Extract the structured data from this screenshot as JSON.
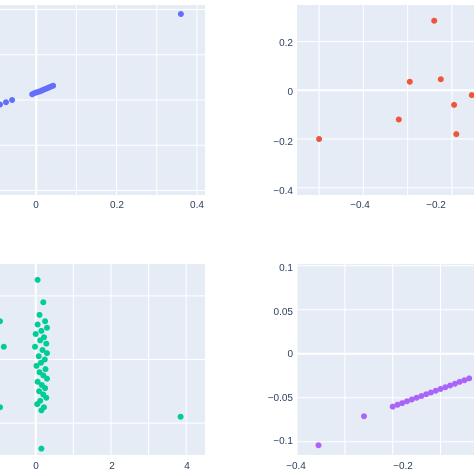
{
  "colors": {
    "plot_bg": "#E5ECF6",
    "grid": "#ffffff",
    "tick_text": "#2a3f5f",
    "series": [
      "#636EFA",
      "#EF553B",
      "#00CC96",
      "#AB63FA"
    ]
  },
  "chart_data": [
    {
      "type": "scatter",
      "grid": true,
      "xticks": [
        "0",
        "0.2",
        "0.4"
      ],
      "yticks": [],
      "xlim": [
        -0.09,
        0.42
      ],
      "ylim": [
        -0.42,
        0.42
      ],
      "points": [
        {
          "x": -0.09,
          "y": -0.02
        },
        {
          "x": -0.075,
          "y": -0.01
        },
        {
          "x": -0.06,
          "y": 0.0
        },
        {
          "x": -0.01,
          "y": 0.025
        },
        {
          "x": -0.005,
          "y": 0.03
        },
        {
          "x": 0.0,
          "y": 0.033
        },
        {
          "x": 0.005,
          "y": 0.036
        },
        {
          "x": 0.01,
          "y": 0.039
        },
        {
          "x": 0.014,
          "y": 0.042
        },
        {
          "x": 0.018,
          "y": 0.045
        },
        {
          "x": 0.022,
          "y": 0.048
        },
        {
          "x": 0.026,
          "y": 0.051
        },
        {
          "x": 0.03,
          "y": 0.054
        },
        {
          "x": 0.034,
          "y": 0.057
        },
        {
          "x": 0.038,
          "y": 0.06
        },
        {
          "x": 0.042,
          "y": 0.063
        },
        {
          "x": 0.36,
          "y": 0.38
        }
      ]
    },
    {
      "type": "scatter",
      "grid": true,
      "xticks": [
        "−0.4",
        "−0.2"
      ],
      "yticks": [
        "0.2",
        "0",
        "−0.2",
        "−0.4"
      ],
      "xlim": [
        -0.55,
        -0.15
      ],
      "ylim": [
        -0.43,
        0.35
      ],
      "points": [
        {
          "x": -0.5,
          "y": -0.2
        },
        {
          "x": -0.32,
          "y": -0.12
        },
        {
          "x": -0.295,
          "y": 0.035
        },
        {
          "x": -0.24,
          "y": 0.285
        },
        {
          "x": -0.225,
          "y": 0.045
        },
        {
          "x": -0.195,
          "y": -0.06
        },
        {
          "x": -0.19,
          "y": -0.18
        },
        {
          "x": -0.155,
          "y": -0.02
        }
      ]
    },
    {
      "type": "scatter",
      "grid": true,
      "xticks": [
        "0",
        "2",
        "4"
      ],
      "yticks": [],
      "xlim": [
        -0.95,
        4.5
      ],
      "ylim": [
        -1.5,
        1.5
      ],
      "points": [
        {
          "x": -0.95,
          "y": 0.6
        },
        {
          "x": -0.85,
          "y": 0.2
        },
        {
          "x": -0.95,
          "y": -0.75
        },
        {
          "x": 0.05,
          "y": 1.25
        },
        {
          "x": 0.2,
          "y": 0.9
        },
        {
          "x": 0.1,
          "y": 0.7
        },
        {
          "x": 0.25,
          "y": 0.6
        },
        {
          "x": 0.05,
          "y": 0.55
        },
        {
          "x": 0.3,
          "y": 0.5
        },
        {
          "x": 0.15,
          "y": 0.45
        },
        {
          "x": 0.0,
          "y": 0.4
        },
        {
          "x": 0.22,
          "y": 0.35
        },
        {
          "x": 0.12,
          "y": 0.3
        },
        {
          "x": 0.28,
          "y": 0.25
        },
        {
          "x": -0.02,
          "y": 0.2
        },
        {
          "x": 0.18,
          "y": 0.15
        },
        {
          "x": 0.3,
          "y": 0.1
        },
        {
          "x": 0.08,
          "y": 0.05
        },
        {
          "x": 0.24,
          "y": 0.0
        },
        {
          "x": 0.14,
          "y": -0.05
        },
        {
          "x": 0.02,
          "y": -0.1
        },
        {
          "x": 0.26,
          "y": -0.15
        },
        {
          "x": 0.1,
          "y": -0.2
        },
        {
          "x": 0.2,
          "y": -0.25
        },
        {
          "x": 0.3,
          "y": -0.3
        },
        {
          "x": 0.05,
          "y": -0.35
        },
        {
          "x": 0.16,
          "y": -0.4
        },
        {
          "x": 0.25,
          "y": -0.45
        },
        {
          "x": 0.09,
          "y": -0.5
        },
        {
          "x": 0.2,
          "y": -0.55
        },
        {
          "x": 0.28,
          "y": -0.6
        },
        {
          "x": 0.12,
          "y": -0.65
        },
        {
          "x": 0.04,
          "y": -0.7
        },
        {
          "x": 0.22,
          "y": -0.75
        },
        {
          "x": 0.15,
          "y": -0.8
        },
        {
          "x": 3.85,
          "y": -0.9
        },
        {
          "x": 0.15,
          "y": -1.4
        }
      ]
    },
    {
      "type": "scatter",
      "grid": true,
      "xticks": [
        "−0.4",
        "−0.2"
      ],
      "yticks": [
        "0.1",
        "0.05",
        "0",
        "−0.05",
        "−0.1"
      ],
      "xlim": [
        -0.4,
        -0.03
      ],
      "ylim": [
        -0.115,
        0.102
      ],
      "points": [
        {
          "x": -0.355,
          "y": -0.104
        },
        {
          "x": -0.26,
          "y": -0.071
        },
        {
          "x": -0.2,
          "y": -0.06
        },
        {
          "x": -0.19,
          "y": -0.058
        },
        {
          "x": -0.18,
          "y": -0.056
        },
        {
          "x": -0.17,
          "y": -0.054
        },
        {
          "x": -0.16,
          "y": -0.052
        },
        {
          "x": -0.15,
          "y": -0.05
        },
        {
          "x": -0.14,
          "y": -0.048
        },
        {
          "x": -0.13,
          "y": -0.046
        },
        {
          "x": -0.12,
          "y": -0.044
        },
        {
          "x": -0.11,
          "y": -0.042
        },
        {
          "x": -0.1,
          "y": -0.04
        },
        {
          "x": -0.09,
          "y": -0.038
        },
        {
          "x": -0.08,
          "y": -0.036
        },
        {
          "x": -0.07,
          "y": -0.034
        },
        {
          "x": -0.06,
          "y": -0.032
        },
        {
          "x": -0.05,
          "y": -0.03
        },
        {
          "x": -0.04,
          "y": -0.028
        }
      ]
    }
  ]
}
